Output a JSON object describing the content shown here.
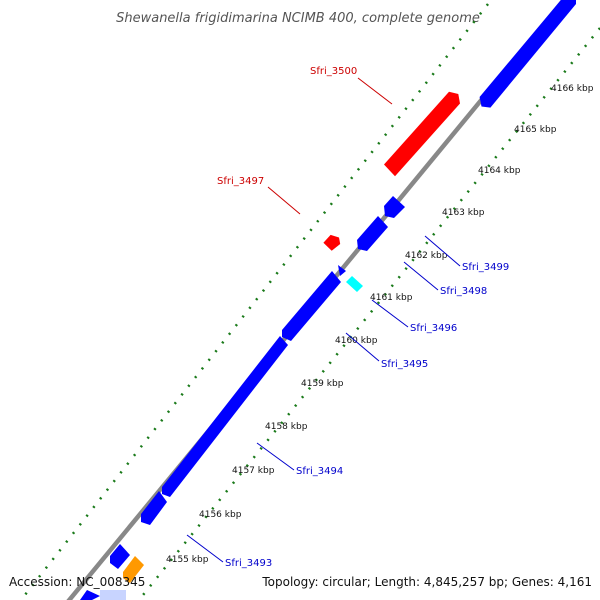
{
  "title": "Shewanella frigidimarina NCIMB 400, complete genome",
  "accession": "Accession: NC_008345",
  "summary": "Topology: circular; Length: 4,845,257 bp; Genes: 4,161",
  "colors": {
    "backbone": "#888888",
    "forward_gene": "#ff0000",
    "reverse_gene": "#0000ff",
    "cyan_gene": "#00ffff",
    "orange_gene": "#ff9900",
    "gc_skew_ticks": "#1a7a1a",
    "reverse_label": "#0000cc",
    "forward_label": "#cc0000"
  },
  "ticks": [
    {
      "label": "4155 kbp"
    },
    {
      "label": "4156 kbp"
    },
    {
      "label": "4157 kbp"
    },
    {
      "label": "4158 kbp"
    },
    {
      "label": "4159 kbp"
    },
    {
      "label": "4160 kbp"
    },
    {
      "label": "4161 kbp"
    },
    {
      "label": "4162 kbp"
    },
    {
      "label": "4163 kbp"
    },
    {
      "label": "4164 kbp"
    },
    {
      "label": "4165 kbp"
    },
    {
      "label": "4166 kbp"
    }
  ],
  "gene_labels": [
    {
      "name": "Sfri_3500",
      "strand": "forward"
    },
    {
      "name": "Sfri_3497",
      "strand": "forward"
    },
    {
      "name": "Sfri_3499",
      "strand": "reverse"
    },
    {
      "name": "Sfri_3498",
      "strand": "reverse"
    },
    {
      "name": "Sfri_3496",
      "strand": "reverse"
    },
    {
      "name": "Sfri_3495",
      "strand": "reverse"
    },
    {
      "name": "Sfri_3494",
      "strand": "reverse"
    },
    {
      "name": "Sfri_3493",
      "strand": "reverse"
    }
  ]
}
